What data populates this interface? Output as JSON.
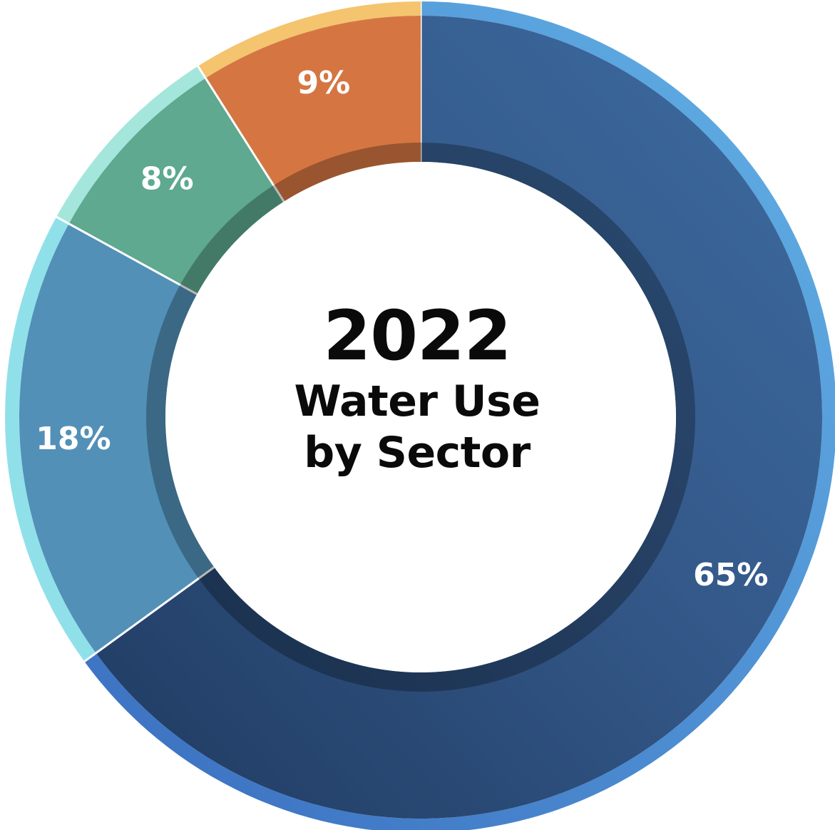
{
  "chart_data": {
    "type": "pie",
    "style": "donut",
    "title": "2022",
    "subtitle_lines": [
      "Water Use",
      "by Sector"
    ],
    "slices": [
      {
        "label": "65%",
        "value": 65,
        "color": "#3a6699",
        "rim": "#5fa8e0"
      },
      {
        "label": "18%",
        "value": 18,
        "color": "#5290b7",
        "rim": "#90e0ea"
      },
      {
        "label": "8%",
        "value": 8,
        "color": "#5ea98f",
        "rim": "#a4e6dc"
      },
      {
        "label": "9%",
        "value": 9,
        "color": "#d57642",
        "rim": "#f4c46f"
      }
    ],
    "legend": "none",
    "start": "top",
    "direction": "clockwise"
  }
}
